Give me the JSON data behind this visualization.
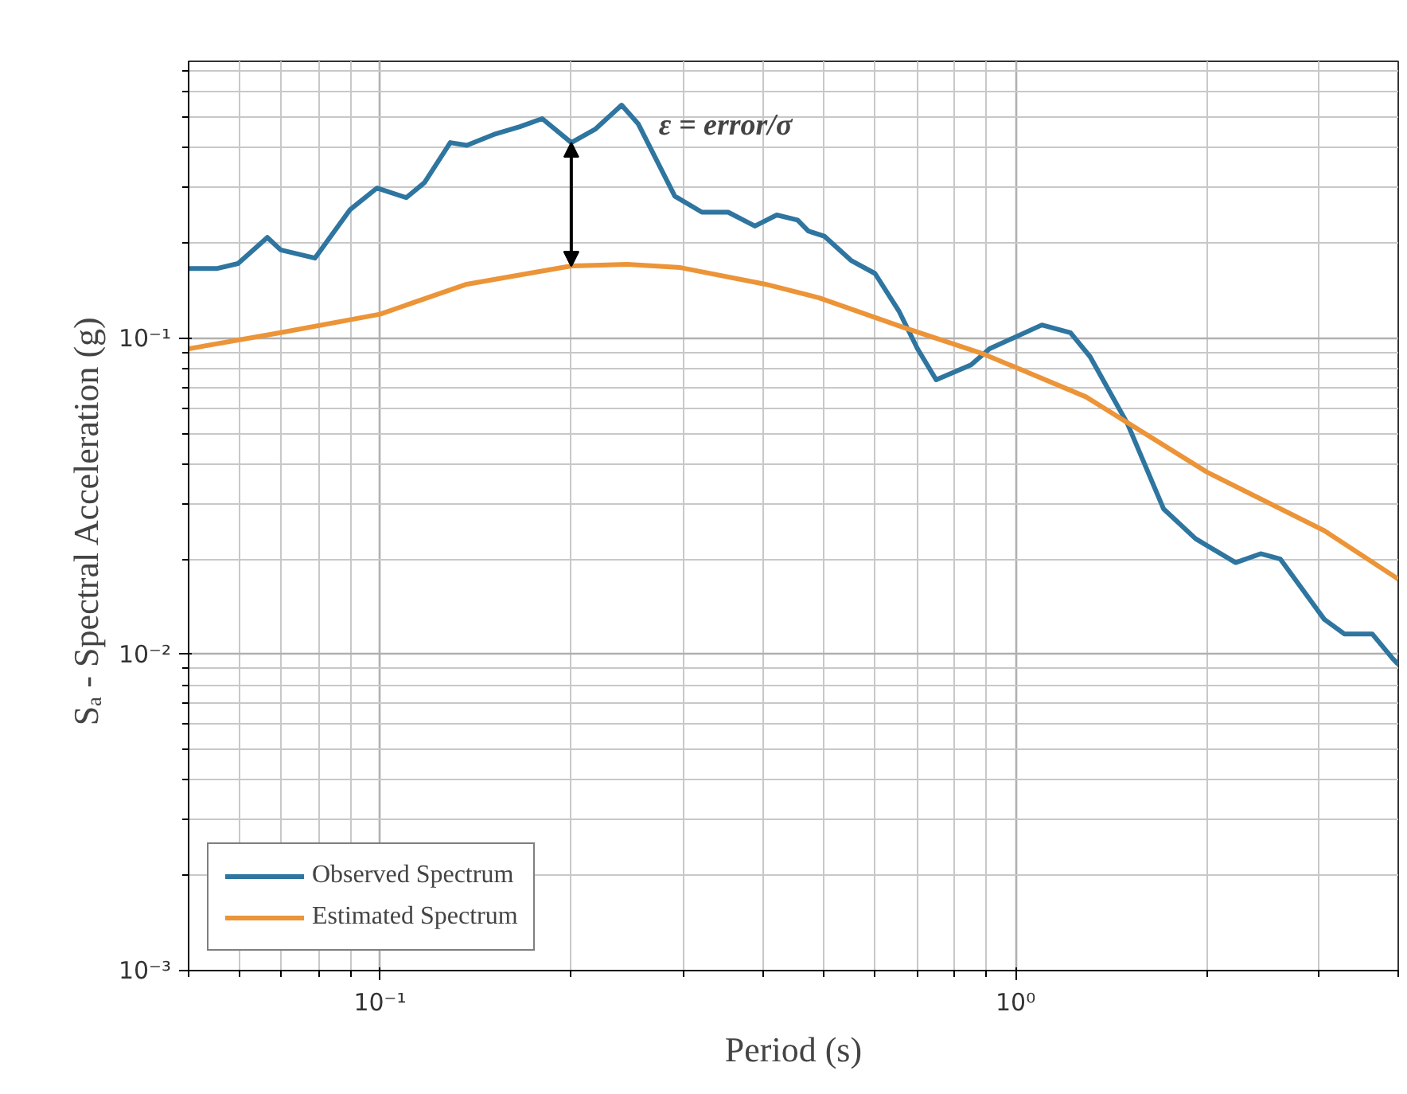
{
  "chart_data": {
    "type": "line",
    "xlabel": "Period (s)",
    "ylabel": "Sₐ - Spectral Acceleration  (g)",
    "log": "xy",
    "grid": true,
    "legend": "bottom left",
    "line_style": "solid",
    "xlim": [
      0.05,
      4.0
    ],
    "xticks": [
      {
        "value": 0.1,
        "label": "10⁻¹"
      },
      {
        "value": 1,
        "label": "10⁰"
      }
    ],
    "ylim": [
      0.001,
      0.75
    ],
    "yticks": [
      {
        "value": 0.001,
        "label": "10⁻³"
      },
      {
        "value": 0.01,
        "label": "10⁻²"
      },
      {
        "value": 0.1,
        "label": "10⁻¹"
      }
    ],
    "annotations": [
      {
        "text": "ε = error/σ",
        "x": 0.2,
        "y": 0.415
      }
    ],
    "series": [
      {
        "name": "Observed Spectrum",
        "color": "#2e75a0",
        "x": [
          0.05,
          0.0555,
          0.0598,
          0.0665,
          0.0698,
          0.079,
          0.0898,
          0.0989,
          0.11,
          0.1175,
          0.129,
          0.137,
          0.151,
          0.166,
          0.18,
          0.2,
          0.218,
          0.24,
          0.255,
          0.291,
          0.321,
          0.353,
          0.389,
          0.421,
          0.454,
          0.472,
          0.5,
          0.551,
          0.601,
          0.655,
          0.701,
          0.75,
          0.851,
          0.91,
          1.1,
          1.22,
          1.31,
          1.5,
          1.71,
          1.92,
          2.22,
          2.43,
          2.61,
          3.06,
          3.29,
          3.64,
          3.92,
          4.0
        ],
        "values": [
          0.166,
          0.166,
          0.172,
          0.208,
          0.19,
          0.179,
          0.255,
          0.298,
          0.278,
          0.31,
          0.415,
          0.407,
          0.44,
          0.466,
          0.494,
          0.415,
          0.457,
          0.545,
          0.475,
          0.281,
          0.25,
          0.25,
          0.226,
          0.245,
          0.236,
          0.218,
          0.21,
          0.176,
          0.16,
          0.122,
          0.0925,
          0.0738,
          0.0823,
          0.0925,
          0.11,
          0.104,
          0.0873,
          0.0536,
          0.0288,
          0.0232,
          0.0195,
          0.0208,
          0.02,
          0.0129,
          0.0116,
          0.0116,
          0.0097,
          0.0093
        ]
      },
      {
        "name": "Estimated Spectrum",
        "color": "#ec9438",
        "x": [
          0.05,
          0.0698,
          0.1,
          0.137,
          0.2,
          0.245,
          0.297,
          0.404,
          0.491,
          0.667,
          0.891,
          1.29,
          2.0,
          3.06,
          4.0
        ],
        "values": [
          0.0925,
          0.104,
          0.119,
          0.148,
          0.169,
          0.171,
          0.167,
          0.148,
          0.134,
          0.108,
          0.089,
          0.0652,
          0.0377,
          0.0246,
          0.0173
        ]
      }
    ]
  }
}
